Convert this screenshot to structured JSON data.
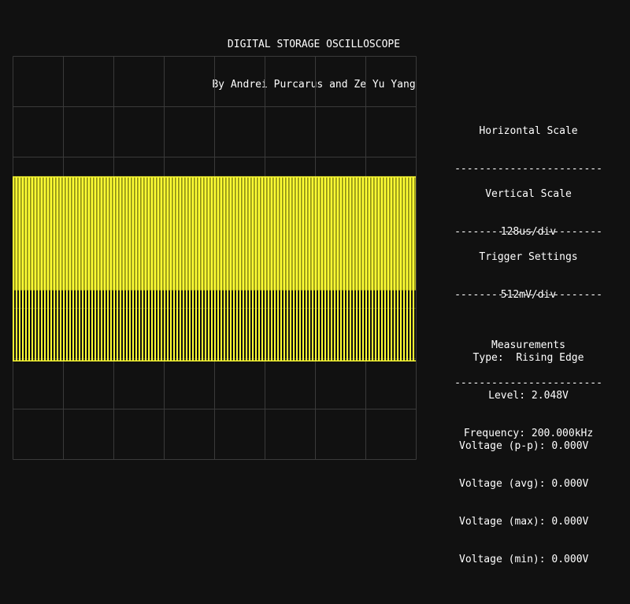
{
  "header": {
    "title": "DIGITAL STORAGE OSCILLOSCOPE",
    "subtitle": "By Andrei Purcarus and Ze Yu Yang"
  },
  "colors": {
    "background": "#111111",
    "grid": "#3a3a3a",
    "trace": "#ffff33",
    "text": "#ffffff"
  },
  "screen": {
    "divisions_x": 8,
    "divisions_y": 8,
    "trace_cycles": 128,
    "trace_high_div": 2.4,
    "trace_mid_div": 4.65,
    "trace_low_div": 6.05
  },
  "panels": {
    "horizontal": {
      "title": "Horizontal Scale",
      "rule": "------------------------",
      "value": "128us/div"
    },
    "vertical": {
      "title": "Vertical Scale",
      "rule": "------------------------",
      "value": "512mV/div"
    },
    "trigger": {
      "title": "Trigger Settings",
      "rule": "------------------------",
      "type": "Type:  Rising Edge",
      "level": "Level: 2.048V",
      "frequency": "Frequency: 200.000kHz"
    },
    "measurements": {
      "title": "Measurements",
      "rule": "------------------------",
      "pp": "Voltage (p-p): 0.000V",
      "avg": "Voltage (avg): 0.000V",
      "max": "Voltage (max): 0.000V",
      "min": "Voltage (min): 0.000V"
    }
  }
}
